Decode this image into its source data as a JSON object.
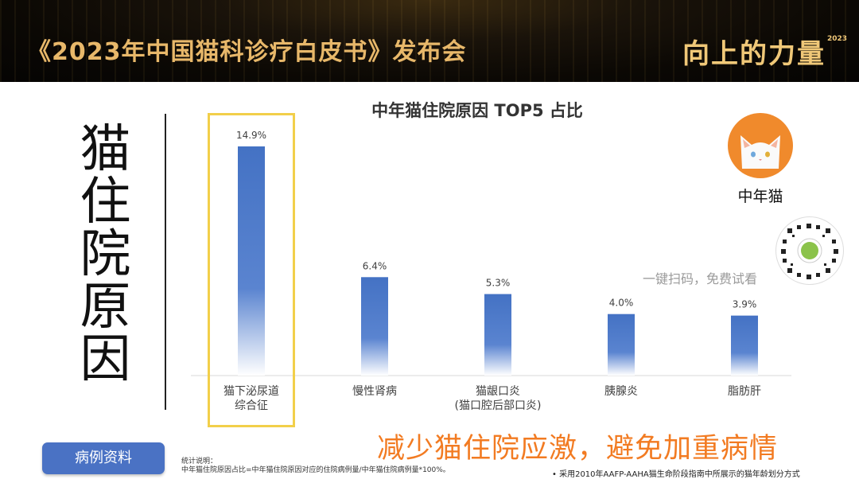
{
  "banner": {
    "title": "《2023年中国猫科诊疗白皮书》发布会",
    "logo": "向上的力量",
    "logo_year": "2023"
  },
  "side_title": "猫住院原因",
  "chart_data": {
    "type": "bar",
    "title": "中年猫住院原因 TOP5 占比",
    "categories": [
      [
        "猫下泌尿道",
        "综合征"
      ],
      [
        "慢性肾病"
      ],
      [
        "猫龈口炎",
        "(猫口腔后部口炎)"
      ],
      [
        "胰腺炎"
      ],
      [
        "脂肪肝"
      ]
    ],
    "values": [
      14.9,
      6.4,
      5.3,
      4.0,
      3.9
    ],
    "value_labels": [
      "14.9%",
      "6.4%",
      "5.3%",
      "4.0%",
      "3.9%"
    ],
    "unit": "%",
    "ylim": [
      0,
      14.9
    ],
    "highlighted_index": 0,
    "colors": {
      "bar": "#4472c4",
      "highlight": "#f2cf4a"
    }
  },
  "cat_panel": {
    "label": "中年猫"
  },
  "scan_text": "一键扫码，免费试看",
  "case_button": {
    "label": "病例资料"
  },
  "notes": {
    "heading": "统计说明：",
    "body": "中年猫住院原因占比=中年猫住院原因对应的住院病例量/中年猫住院病例量*100%。"
  },
  "slogan": "减少猫住院应激，避免加重病情",
  "footnote": "•   采用2010年AAFP-AAHA猫生命阶段指南中所展示的猫年龄划分方式"
}
